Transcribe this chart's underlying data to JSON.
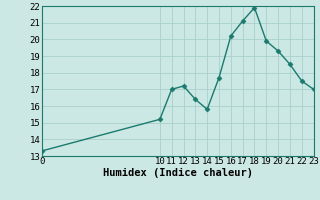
{
  "x": [
    0,
    10,
    11,
    12,
    13,
    14,
    15,
    16,
    17,
    18,
    19,
    20,
    21,
    22,
    23
  ],
  "y": [
    13.3,
    15.2,
    17.0,
    17.2,
    16.4,
    15.8,
    17.7,
    20.2,
    21.1,
    21.9,
    19.9,
    19.3,
    18.5,
    17.5,
    17.0
  ],
  "xlabel": "Humidex (Indice chaleur)",
  "xlim": [
    0,
    23
  ],
  "ylim": [
    13,
    22
  ],
  "yticks": [
    13,
    14,
    15,
    16,
    17,
    18,
    19,
    20,
    21,
    22
  ],
  "xticks": [
    0,
    10,
    11,
    12,
    13,
    14,
    15,
    16,
    17,
    18,
    19,
    20,
    21,
    22,
    23
  ],
  "line_color": "#1a7a6e",
  "marker_color": "#1a7a6e",
  "bg_color": "#cce8e4",
  "grid_color": "#aacfcb",
  "tick_fontsize": 6.5,
  "xlabel_fontsize": 7.5,
  "marker_size": 2.5,
  "line_width": 1.0
}
